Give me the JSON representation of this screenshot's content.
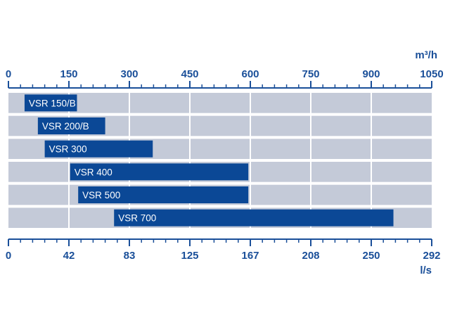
{
  "chart_data": {
    "type": "bar",
    "orientation": "horizontal",
    "title": "",
    "top_axis": {
      "unit": "m³/h",
      "ticks": [
        "0",
        "150",
        "300",
        "450",
        "600",
        "750",
        "900",
        "1050"
      ],
      "range": [
        0,
        1050
      ]
    },
    "bottom_axis": {
      "unit": "l/s",
      "ticks": [
        "0",
        "42",
        "83",
        "125",
        "167",
        "208",
        "250",
        "292"
      ]
    },
    "series": [
      {
        "categories": [
          "VSR 150/B",
          "VSR 200/B",
          "VSR 300",
          "VSR 400",
          "VSR 500",
          "VSR 700"
        ],
        "ranges": [
          [
            40,
            170
          ],
          [
            73,
            240
          ],
          [
            90,
            358
          ],
          [
            153,
            595
          ],
          [
            173,
            595
          ],
          [
            262,
            955
          ]
        ]
      }
    ],
    "grid": true,
    "colors": {
      "axis": "#1a4f99",
      "bar": "#0b4896",
      "row_band": "#c4cad8",
      "grid_line": "#ffffff"
    }
  }
}
